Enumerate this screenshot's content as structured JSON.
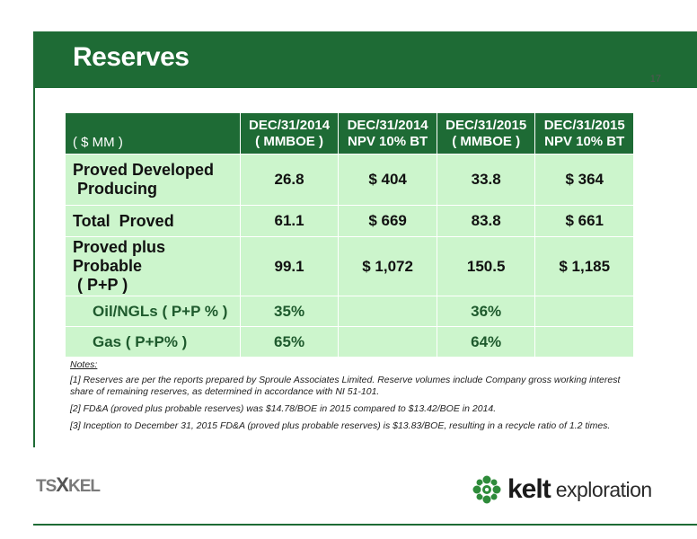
{
  "header": {
    "title": "Reserves",
    "page_number": "17"
  },
  "table": {
    "unit_label": "( $ MM )",
    "columns": [
      {
        "line1": "DEC/31/2014",
        "line2": "( MMBOE )"
      },
      {
        "line1": "DEC/31/2014",
        "line2": "NPV 10% BT"
      },
      {
        "line1": "DEC/31/2015",
        "line2": "( MMBOE )"
      },
      {
        "line1": "DEC/31/2015",
        "line2": "NPV 10% BT"
      }
    ],
    "rows": [
      {
        "label_line1": "Proved Developed",
        "label_line2": "Producing",
        "values": [
          "26.8",
          "$ 404",
          "33.8",
          "$ 364"
        ]
      },
      {
        "label_line1": "Total  Proved",
        "label_line2": "",
        "values": [
          "61.1",
          "$ 669",
          "83.8",
          "$ 661"
        ]
      },
      {
        "label_line1": "Proved plus Probable",
        "label_line2": "( P+P )",
        "values": [
          "99.1",
          "$ 1,072",
          "150.5",
          "$ 1,185"
        ]
      },
      {
        "label_line1": "Oil/NGLs ( P+P % )",
        "label_line2": "",
        "values": [
          "35%",
          "",
          "36%",
          ""
        ]
      },
      {
        "label_line1": "Gas ( P+P% )",
        "label_line2": "",
        "values": [
          "65%",
          "",
          "64%",
          ""
        ]
      }
    ]
  },
  "notes": {
    "heading": "Notes:",
    "items": [
      "[1] Reserves are per the reports prepared by Sproule Associates Limited. Reserve volumes include Company gross working interest share of remaining reserves, as determined in accordance with NI 51-101.",
      "[2] FD&A (proved plus probable reserves) was $14.78/BOE in 2015 compared to $13.42/BOE in 2014.",
      "[3] Inception to December 31, 2015 FD&A (proved plus probable reserves) is $13.83/BOE, resulting in a recycle ratio of 1.2 times."
    ]
  },
  "footer": {
    "tsx_logo": {
      "part1": "TS",
      "part2": "X",
      "part3": "KEL"
    },
    "kelt_logo": {
      "word": "kelt",
      "sub": "exploration",
      "icon": "kelt-leaf-icon"
    }
  },
  "colors": {
    "brand_green": "#1e6b35",
    "cell_green": "#ccf5cc",
    "sub_text_green": "#1e5a2d"
  }
}
